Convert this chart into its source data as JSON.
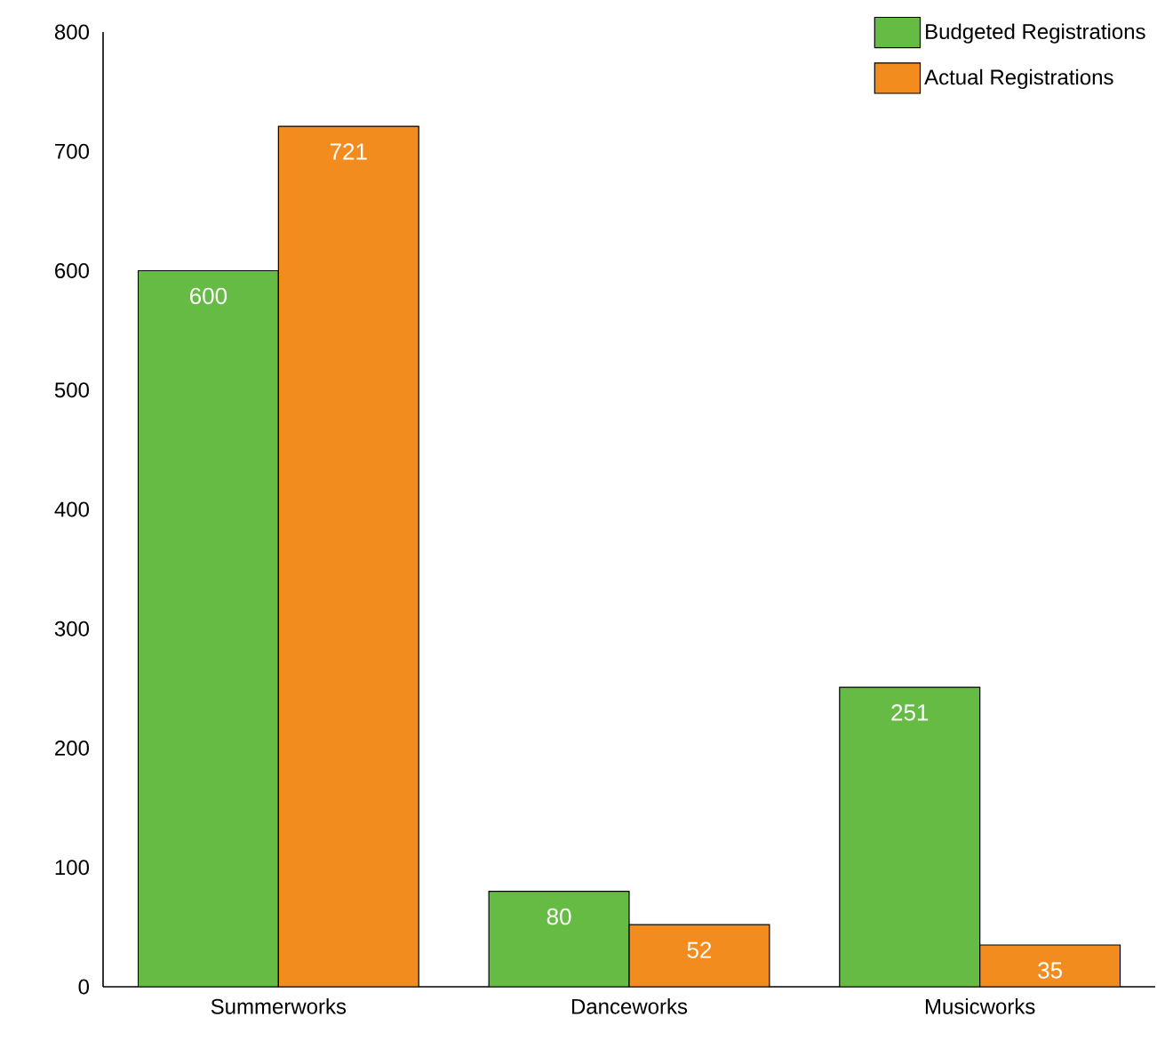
{
  "chart_data": {
    "type": "bar",
    "categories": [
      "Summerworks",
      "Danceworks",
      "Musicworks"
    ],
    "series": [
      {
        "name": "Budgeted Registrations",
        "color": "#66bb44",
        "values": [
          600,
          80,
          251
        ]
      },
      {
        "name": "Actual Registrations",
        "color": "#f28c1e",
        "values": [
          721,
          52,
          35
        ]
      }
    ],
    "ylim": [
      0,
      800
    ],
    "yticks": [
      0,
      100,
      200,
      300,
      400,
      500,
      600,
      700,
      800
    ],
    "data_labels": true,
    "grid": false,
    "legend": "top right"
  }
}
